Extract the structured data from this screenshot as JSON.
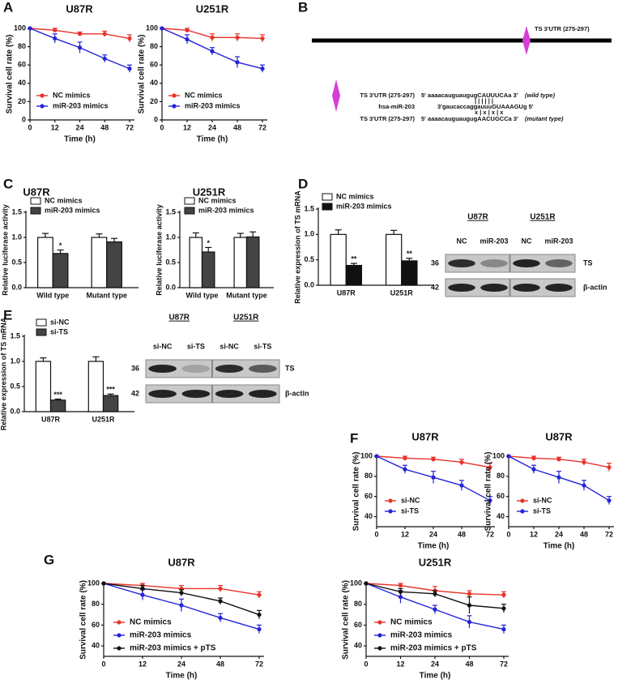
{
  "panels": [
    "A",
    "B",
    "C",
    "D",
    "E",
    "F",
    "G"
  ],
  "schematic": {
    "site_label": "TS 3'UTR (275-297)",
    "rows": [
      {
        "name": "TS 3'UTR (275-297)",
        "seq": "5' aaaacauguaugugCAUUUCAa 3'",
        "note": "(wild type)"
      },
      {
        "name": "hsa-miR-203",
        "seq": "3'gaucaccaggauuuGUAAAGUg 5'"
      },
      {
        "name": "TS 3'UTR (275-297)",
        "seq": "5' aaaacauguaugugAACUGCCa 3'",
        "note": "(mutant type)"
      }
    ],
    "pairing": "| | | | | |",
    "mismatch": "x | x | x | x"
  },
  "blots": [
    {
      "groups": [
        "U87R",
        "U251R"
      ],
      "lanes": [
        "NC",
        "miR-203",
        "NC",
        "miR-203"
      ],
      "markers": [
        "36",
        "42"
      ],
      "proteins": [
        "TS",
        "β-actin"
      ]
    },
    {
      "groups": [
        "U87R",
        "U251R"
      ],
      "lanes": [
        "si-NC",
        "si-TS",
        "si-NC",
        "si-TS"
      ],
      "markers": [
        "36",
        "42"
      ],
      "proteins": [
        "TS",
        "β-actin"
      ]
    }
  ],
  "chart_data": [
    {
      "type": "line",
      "title": "U87R",
      "x_label": "Time (h)",
      "y_label": "Survival cell rate (%)",
      "categories": [
        "0",
        "12",
        "24",
        "48",
        "72"
      ],
      "ylim": [
        0,
        100
      ],
      "yticks": [
        0,
        20,
        40,
        60,
        80,
        100
      ],
      "series": [
        {
          "name": "NC mimics",
          "color": "#e8332a",
          "values": [
            100,
            98,
            94,
            94,
            89
          ],
          "errors": [
            0,
            2,
            2,
            3,
            4
          ]
        },
        {
          "name": "miR-203 mimics",
          "color": "#2424d8",
          "values": [
            100,
            89,
            79,
            67,
            56
          ],
          "errors": [
            0,
            5,
            6,
            4,
            4
          ]
        }
      ]
    },
    {
      "type": "line",
      "title": "U251R",
      "x_label": "Time (h)",
      "y_label": "Survival cell rate (%)",
      "categories": [
        "0",
        "12",
        "24",
        "48",
        "72"
      ],
      "ylim": [
        0,
        100
      ],
      "yticks": [
        0,
        20,
        40,
        60,
        80,
        100
      ],
      "series": [
        {
          "name": "NC mimics",
          "color": "#e8332a",
          "values": [
            100,
            98,
            90,
            90,
            89
          ],
          "errors": [
            0,
            2,
            4,
            4,
            4
          ]
        },
        {
          "name": "miR-203 mimics",
          "color": "#2424d8",
          "values": [
            100,
            88,
            75,
            63,
            56
          ],
          "errors": [
            0,
            5,
            4,
            6,
            4
          ]
        }
      ]
    },
    {
      "type": "bar",
      "title": "U87R",
      "y_label": "Relative luciferase activity",
      "categories": [
        "Wild type",
        "Mutant type"
      ],
      "ylim": [
        0,
        1.5
      ],
      "yticks": [
        {
          "value": 0,
          "label": "0.0"
        },
        {
          "value": 0.5,
          "label": "0.5"
        },
        {
          "value": 1,
          "label": "1.0"
        },
        {
          "value": 1.5,
          "label": "1.5"
        }
      ],
      "series": [
        {
          "name": "NC mimics",
          "color": "#ffffff",
          "values": [
            1.0,
            1.0
          ],
          "errors": [
            0.08,
            0.07
          ]
        },
        {
          "name": "miR-203 mimics",
          "color": "#444444",
          "values": [
            0.68,
            0.91
          ],
          "errors": [
            0.07,
            0.07
          ],
          "significance": [
            "*",
            null
          ]
        }
      ]
    },
    {
      "type": "bar",
      "title": "U251R",
      "y_label": "Relative luciferase activity",
      "categories": [
        "Wild type",
        "Mutant type"
      ],
      "ylim": [
        0,
        1.5
      ],
      "yticks": [
        {
          "value": 0,
          "label": "0.0"
        },
        {
          "value": 0.5,
          "label": "0.5"
        },
        {
          "value": 1,
          "label": "1.0"
        },
        {
          "value": 1.5,
          "label": "1.5"
        }
      ],
      "series": [
        {
          "name": "NC mimics",
          "color": "#ffffff",
          "values": [
            1.0,
            1.0
          ],
          "errors": [
            0.09,
            0.08
          ]
        },
        {
          "name": "miR-203 mimics",
          "color": "#444444",
          "values": [
            0.71,
            1.01
          ],
          "errors": [
            0.09,
            0.1
          ],
          "significance": [
            "*",
            null
          ]
        }
      ]
    },
    {
      "type": "bar",
      "y_label": "Relative expression of TS mRNA",
      "categories": [
        "U87R",
        "U251R"
      ],
      "ylim": [
        0,
        1.5
      ],
      "yticks": [
        {
          "value": 0,
          "label": "0.0"
        },
        {
          "value": 0.5,
          "label": "0.5"
        },
        {
          "value": 1,
          "label": "1.0"
        },
        {
          "value": 1.5,
          "label": "1.5"
        }
      ],
      "series": [
        {
          "name": "NC mimics",
          "color": "#ffffff",
          "values": [
            1.0,
            1.0
          ],
          "errors": [
            0.09,
            0.08
          ]
        },
        {
          "name": "miR-203 mimics",
          "color": "#111111",
          "values": [
            0.39,
            0.48
          ],
          "errors": [
            0.04,
            0.05
          ],
          "significance": [
            "**",
            "**"
          ]
        }
      ]
    },
    {
      "type": "bar",
      "y_label": "Relative expression of TS mRNA",
      "categories": [
        "U87R",
        "U251R"
      ],
      "ylim": [
        0,
        1.5
      ],
      "yticks": [
        {
          "value": 0,
          "label": "0.0"
        },
        {
          "value": 0.5,
          "label": "0.5"
        },
        {
          "value": 1,
          "label": "1.0"
        },
        {
          "value": 1.5,
          "label": "1.5"
        }
      ],
      "series": [
        {
          "name": "si-NC",
          "color": "#ffffff",
          "values": [
            1.0,
            1.0
          ],
          "errors": [
            0.07,
            0.09
          ]
        },
        {
          "name": "si-TS",
          "color": "#444444",
          "values": [
            0.23,
            0.32
          ],
          "errors": [
            0.02,
            0.03
          ],
          "significance": [
            "***",
            "***"
          ]
        }
      ]
    },
    {
      "type": "line",
      "title": "U87R",
      "x_label": "Time (h)",
      "y_label": "Survival cell rate (%)",
      "categories": [
        "0",
        "12",
        "24",
        "48",
        "72"
      ],
      "ylim": [
        30,
        100
      ],
      "yticks": [
        40,
        60,
        80,
        100
      ],
      "series": [
        {
          "name": "si-NC",
          "color": "#e8332a",
          "values": [
            100,
            98,
            97,
            94,
            89
          ],
          "errors": [
            0,
            2,
            2,
            3,
            4
          ]
        },
        {
          "name": "si-TS",
          "color": "#2424d8",
          "values": [
            100,
            87,
            79,
            71,
            56
          ],
          "errors": [
            0,
            4,
            6,
            5,
            4
          ]
        }
      ]
    },
    {
      "type": "line",
      "title": "U87R",
      "x_label": "Time (h)",
      "y_label": "Survival cell rate (%)",
      "categories": [
        "0",
        "12",
        "24",
        "48",
        "72"
      ],
      "ylim": [
        30,
        100
      ],
      "yticks": [
        40,
        60,
        80,
        100
      ],
      "series": [
        {
          "name": "si-NC",
          "color": "#e8332a",
          "values": [
            100,
            98,
            97,
            94,
            89
          ],
          "errors": [
            0,
            2,
            2,
            3,
            4
          ]
        },
        {
          "name": "si-TS",
          "color": "#2424d8",
          "values": [
            100,
            87,
            79,
            71,
            56
          ],
          "errors": [
            0,
            4,
            6,
            5,
            4
          ]
        }
      ]
    },
    {
      "type": "line",
      "title": "U87R",
      "x_label": "Time (h)",
      "y_label": "Survival cell rate (%)",
      "categories": [
        "0",
        "12",
        "24",
        "48",
        "72"
      ],
      "ylim": [
        30,
        100
      ],
      "yticks": [
        40,
        60,
        80,
        100
      ],
      "series": [
        {
          "name": "NC mimics",
          "color": "#e8332a",
          "values": [
            100,
            98,
            95,
            95,
            89
          ],
          "errors": [
            0,
            2,
            3,
            3,
            3
          ]
        },
        {
          "name": "miR-203 mimics",
          "color": "#2424d8",
          "values": [
            100,
            89,
            79,
            67,
            56
          ],
          "errors": [
            0,
            5,
            6,
            4,
            4
          ]
        },
        {
          "name": "miR-203 mimics + pTS",
          "color": "#111111",
          "values": [
            100,
            95,
            91,
            83,
            70
          ],
          "errors": [
            0,
            3,
            3,
            3,
            4
          ]
        }
      ]
    },
    {
      "type": "line",
      "title": "U251R",
      "x_label": "Time (h)",
      "y_label": "Survival cell rate (%)",
      "categories": [
        "0",
        "12",
        "24",
        "48",
        "72"
      ],
      "ylim": [
        30,
        100
      ],
      "yticks": [
        40,
        60,
        80,
        100
      ],
      "series": [
        {
          "name": "NC mimics",
          "color": "#e8332a",
          "values": [
            100,
            98,
            93,
            90,
            89
          ],
          "errors": [
            0,
            2,
            4,
            3,
            3
          ]
        },
        {
          "name": "miR-203 mimics",
          "color": "#2424d8",
          "values": [
            100,
            87,
            75,
            63,
            56
          ],
          "errors": [
            0,
            6,
            4,
            6,
            4
          ]
        },
        {
          "name": "miR-203 mimics + pTS",
          "color": "#111111",
          "values": [
            100,
            92,
            90,
            79,
            76
          ],
          "errors": [
            0,
            3,
            3,
            8,
            4
          ]
        }
      ]
    }
  ]
}
